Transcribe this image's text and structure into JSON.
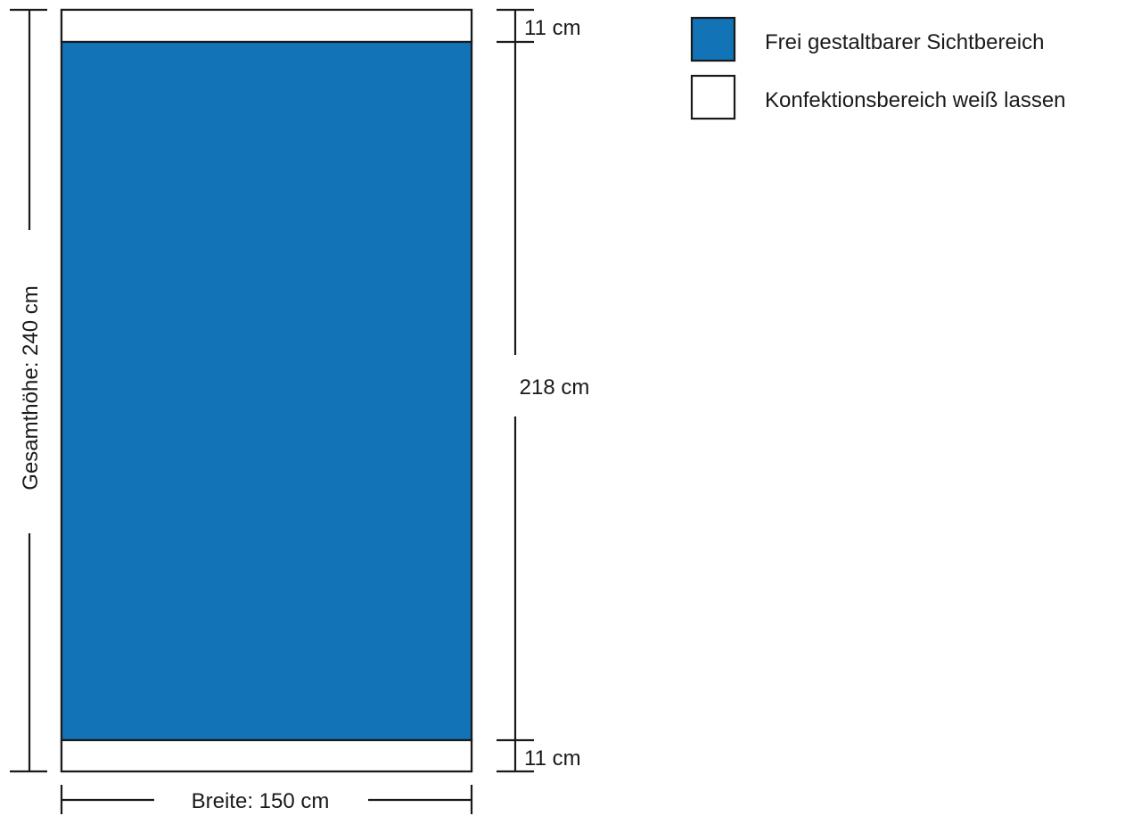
{
  "colors": {
    "visible_area": "#1273b7",
    "finishing_area": "#ffffff",
    "line": "#1a1a1a"
  },
  "dimensions": {
    "total_height_label": "Gesamthöhe: 240 cm",
    "width_label": "Breite: 150 cm",
    "top_margin_label": "11 cm",
    "visible_height_label": "218 cm",
    "bottom_margin_label": "11 cm"
  },
  "legend": {
    "items": [
      {
        "label": "Frei gestaltbarer Sichtbereich",
        "color": "#1273b7"
      },
      {
        "label": "Konfektionsbereich weiß lassen",
        "color": "#ffffff"
      }
    ]
  }
}
